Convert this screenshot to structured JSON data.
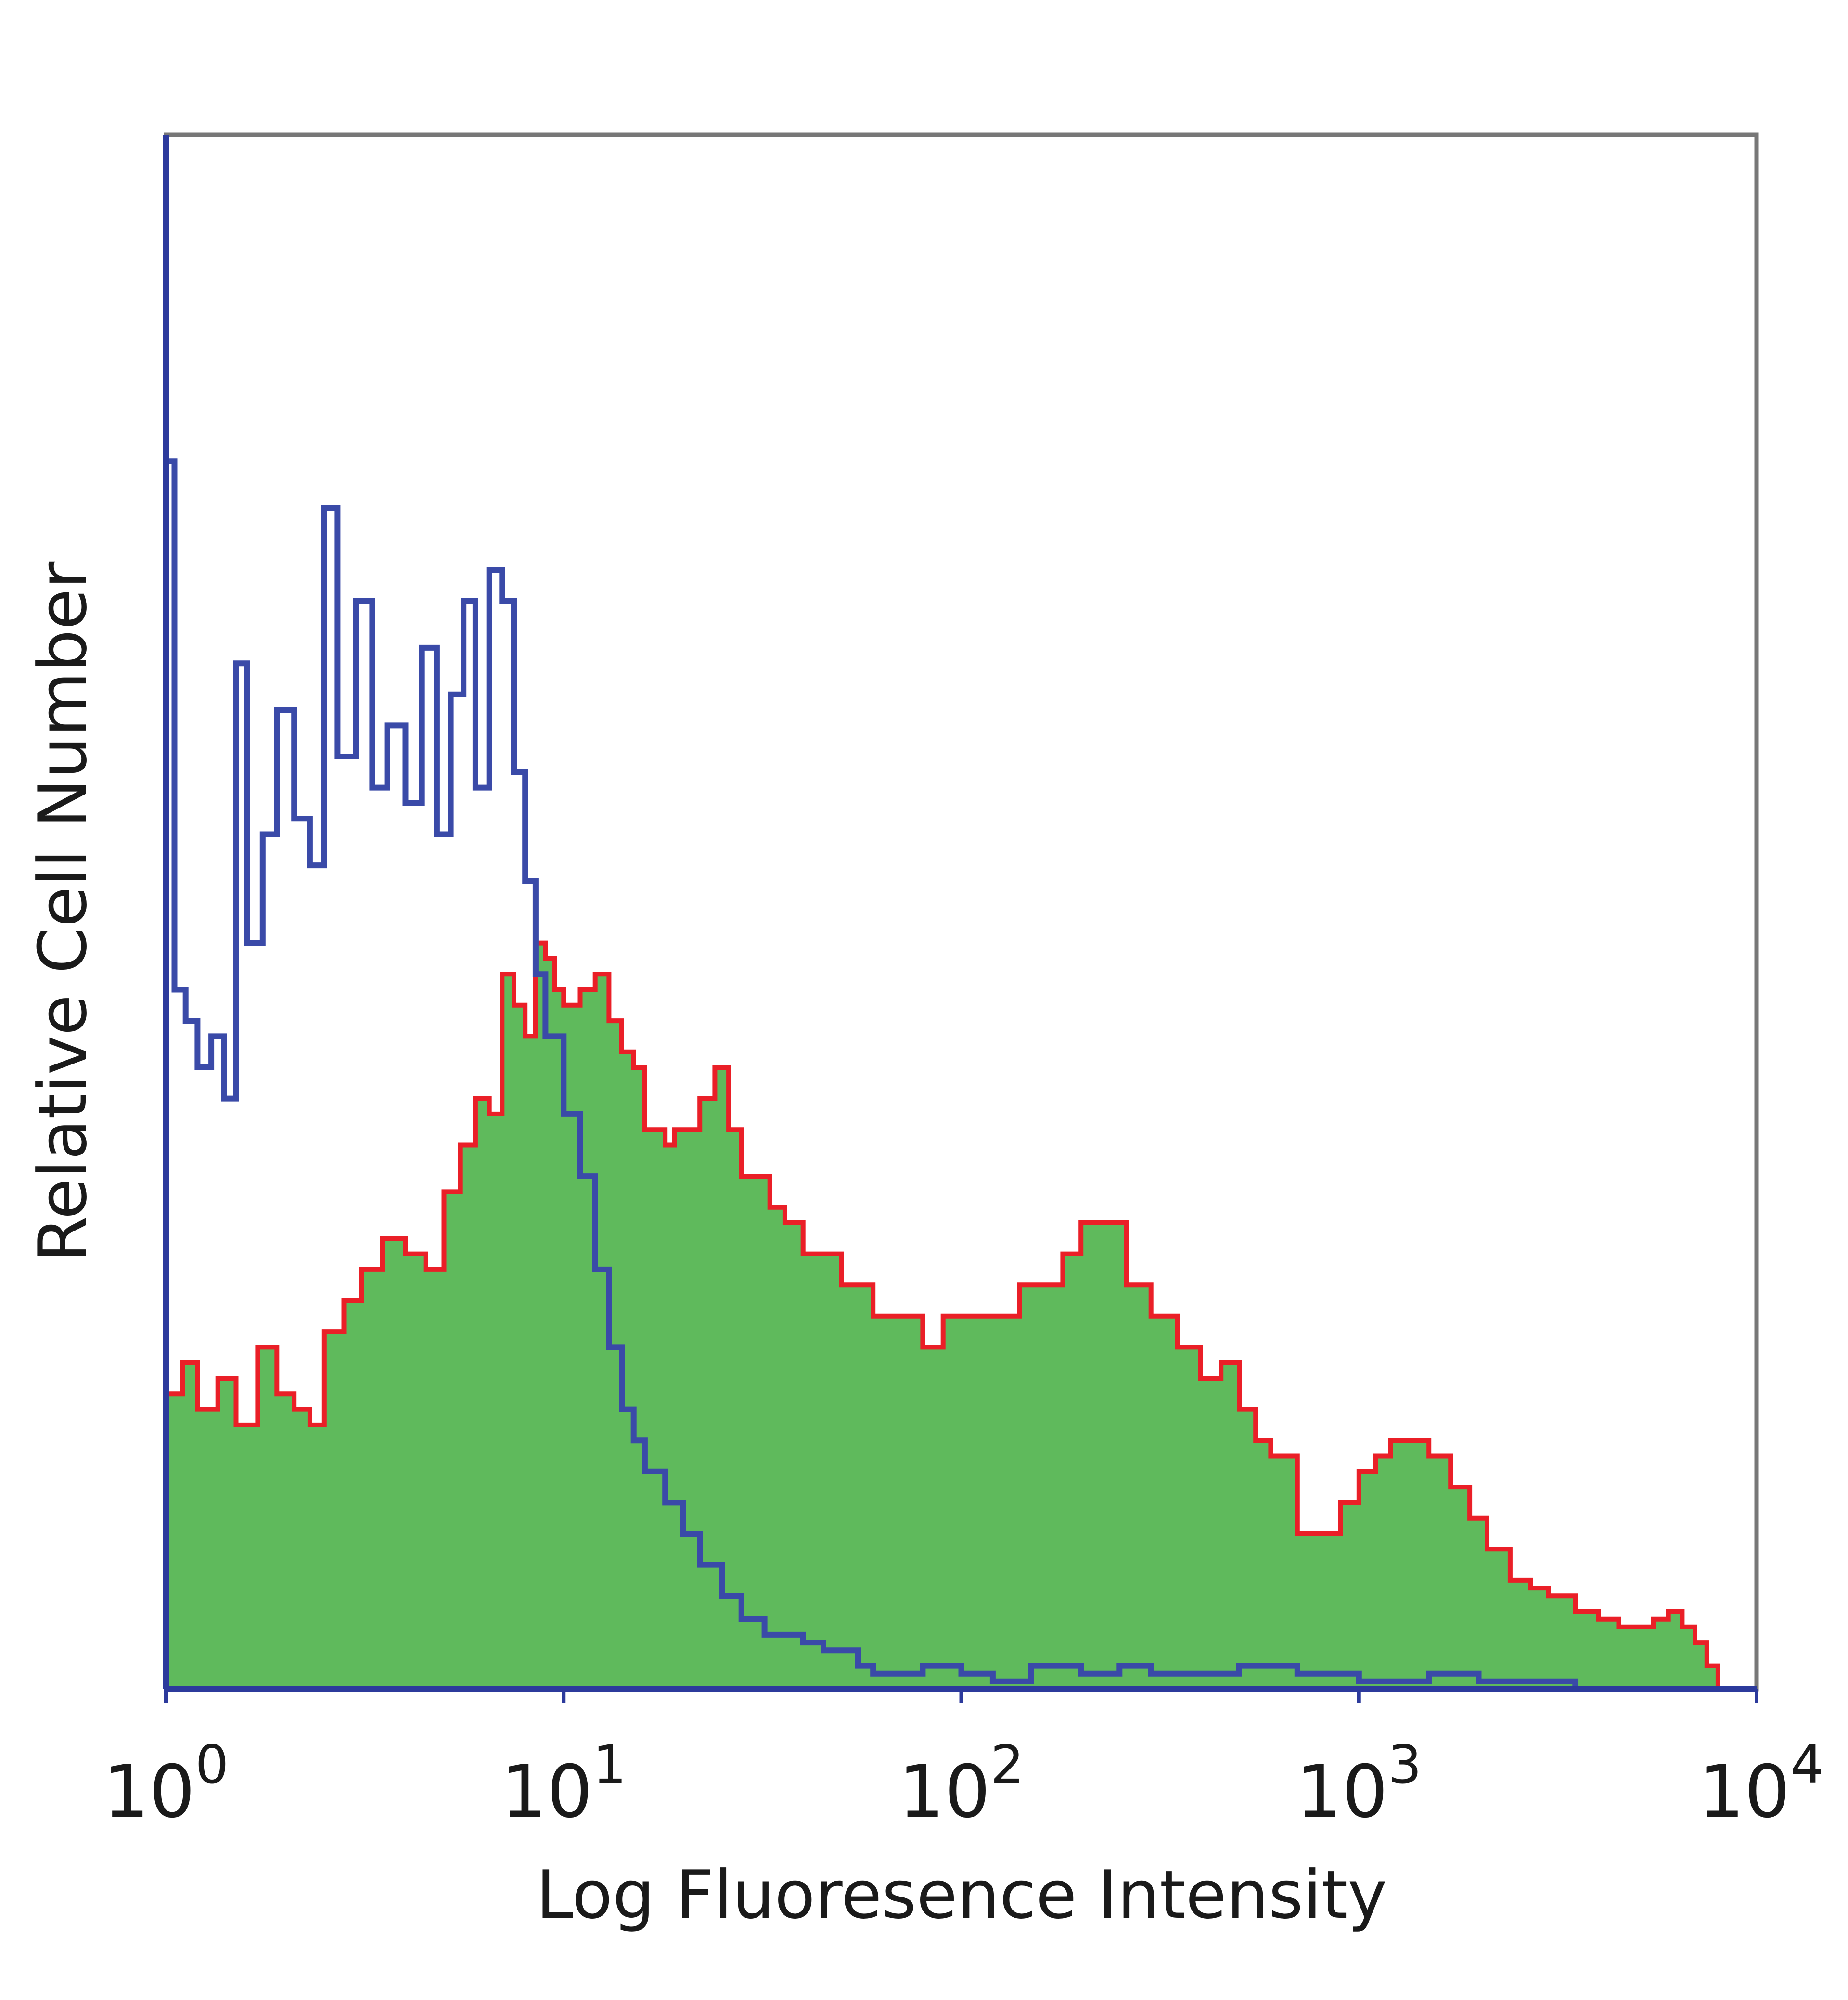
{
  "chart_data": {
    "type": "area",
    "title": "",
    "xlabel": "Log Fluoresence Intensity",
    "ylabel": "Relative Cell Number",
    "x_scale": "log",
    "xlim": [
      1,
      10000
    ],
    "ylim": [
      0,
      100
    ],
    "grid": false,
    "legend": "none",
    "x_ticks": [
      {
        "base": "10",
        "exp": "0",
        "value": 1
      },
      {
        "base": "10",
        "exp": "1",
        "value": 10
      },
      {
        "base": "10",
        "exp": "2",
        "value": 100
      },
      {
        "base": "10",
        "exp": "3",
        "value": 1000
      },
      {
        "base": "10",
        "exp": "4",
        "value": 10000
      }
    ],
    "series": [
      {
        "color": "#3a4aa8",
        "style": "line",
        "x": [
          1,
          1.05,
          1.12,
          1.2,
          1.3,
          1.4,
          1.5,
          1.6,
          1.75,
          1.9,
          2.1,
          2.3,
          2.5,
          2.7,
          3.0,
          3.3,
          3.6,
          4.0,
          4.4,
          4.8,
          5.2,
          5.6,
          6.0,
          6.5,
          7.0,
          7.5,
          8.0,
          8.5,
          9.0,
          10,
          11,
          12,
          13,
          14,
          15,
          16,
          18,
          20,
          22,
          25,
          28,
          32,
          36,
          40,
          45,
          50,
          55,
          60,
          70,
          80,
          100,
          120,
          150,
          200,
          250,
          300,
          400,
          500,
          700,
          1000,
          1500,
          2000,
          3000,
          3500
        ],
        "y": [
          79,
          45,
          43,
          40,
          42,
          38,
          66,
          48,
          55,
          63,
          56,
          53,
          76,
          60,
          70,
          58,
          62,
          57,
          67,
          55,
          64,
          70,
          58,
          72,
          70,
          59,
          52,
          46,
          42,
          37,
          33,
          27,
          22,
          18,
          16,
          14,
          12,
          10,
          8,
          6,
          4.5,
          3.5,
          3.5,
          3,
          2.5,
          2.5,
          1.5,
          1,
          1,
          1.5,
          1,
          0.5,
          1.5,
          1,
          1.5,
          1,
          1,
          1.5,
          1,
          0.5,
          1,
          0.5,
          0.5,
          0
        ]
      },
      {
        "color": "#ea1f27",
        "fill": "#5fba5c",
        "style": "filled",
        "x": [
          1,
          1.1,
          1.2,
          1.35,
          1.5,
          1.7,
          1.9,
          2.1,
          2.3,
          2.5,
          2.8,
          3.1,
          3.5,
          4.0,
          4.5,
          5.0,
          5.5,
          6.0,
          6.5,
          7.0,
          7.5,
          8.0,
          8.5,
          9.0,
          9.5,
          10,
          11,
          12,
          13,
          14,
          15,
          16,
          17,
          18,
          19,
          20,
          22,
          24,
          26,
          28,
          30,
          33,
          36,
          40,
          45,
          50,
          55,
          60,
          70,
          80,
          90,
          100,
          120,
          140,
          160,
          180,
          200,
          230,
          260,
          300,
          350,
          400,
          450,
          500,
          550,
          600,
          700,
          800,
          900,
          1000,
          1100,
          1200,
          1300,
          1400,
          1500,
          1700,
          1900,
          2100,
          2400,
          2700,
          3000,
          3500,
          4000,
          4500,
          5000,
          5500,
          6000,
          6500,
          7000,
          7500,
          8000
        ],
        "y": [
          19,
          21,
          18,
          20,
          17,
          22,
          19,
          18,
          17,
          23,
          25,
          27,
          29,
          28,
          27,
          32,
          35,
          38,
          37,
          46,
          44,
          42,
          48,
          47,
          45,
          44,
          45,
          46,
          43,
          41,
          40,
          36,
          36,
          35,
          36,
          36,
          38,
          40,
          36,
          33,
          33,
          31,
          30,
          28,
          28,
          26,
          26,
          24,
          24,
          22,
          24,
          24,
          24,
          26,
          26,
          28,
          30,
          30,
          26,
          24,
          22,
          20,
          21,
          18,
          16,
          15,
          10,
          10,
          12,
          14,
          15,
          16,
          16,
          16,
          15,
          13,
          11,
          9,
          7,
          6.5,
          6,
          5,
          4.5,
          4,
          4,
          4.5,
          5,
          4,
          3,
          1.5,
          0
        ]
      }
    ]
  }
}
